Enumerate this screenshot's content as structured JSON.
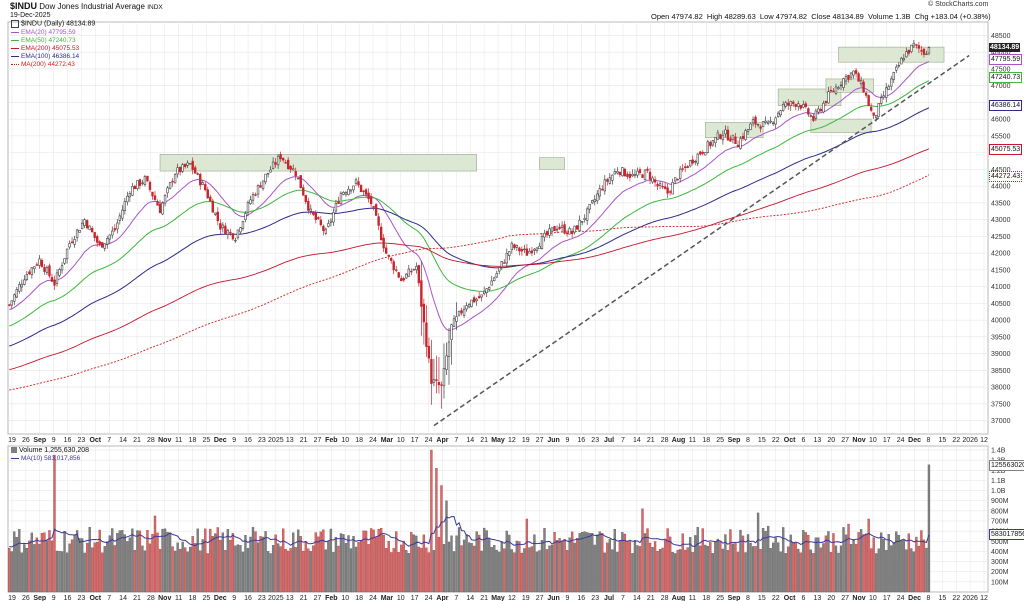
{
  "header": {
    "symbol": "$INDU",
    "name": "Dow Jones Industrial Average",
    "exchange": "INDX",
    "date": "19-Dec-2025",
    "open_label": "Open",
    "open": "47974.82",
    "high_label": "High",
    "high": "48289.63",
    "low_label": "Low",
    "low": "47974.82",
    "close_label": "Close",
    "close": "48134.89",
    "volume_label": "Volume",
    "volume": "1.3B",
    "chg_label": "Chg",
    "chg": "+183.04 (+0.38%)",
    "brand": "© StockCharts.com"
  },
  "legend": {
    "price": "$INDU (Daily) 48134.89",
    "ema20": "EMA(20) 47795.59",
    "ema50": "EMA(50) 47240.73",
    "ema200": "EMA(200) 45075.53",
    "ema100": "EMA(100) 46386.14",
    "ma200": "MA(200) 44272.43",
    "volume": "Volume 1,255,630,208",
    "vol_ma": "MA(10) 583,017,856"
  },
  "colors": {
    "up": "#404040",
    "down": "#c8242c",
    "vol_up": "#808080",
    "vol_down": "#d46a6a",
    "ema20": "#a855c8",
    "ema50": "#3cb83c",
    "ema100": "#2b2b8c",
    "ema200": "#c8142c",
    "ma200": "#d02020",
    "zone_fill": "#dce8d4",
    "zone_stroke": "#9aaa8a",
    "trend": "#555555",
    "vol_ma": "#3a3a9c",
    "grid": "#e4e4e4"
  },
  "value_tags": {
    "close": "48134.89",
    "ema20": "47795.59",
    "ema50": "47240.73",
    "ema100": "46386.14",
    "ema200": "45075.53",
    "ma200": "44272.43",
    "volume": "1255630208",
    "vol_ma": "583017856"
  },
  "chart_data": {
    "type": "candlestick",
    "x_ticks": [
      "19",
      "26",
      "Sep",
      "9",
      "16",
      "23",
      "Oct",
      "7",
      "14",
      "21",
      "28",
      "Nov",
      "11",
      "18",
      "25",
      "Dec",
      "9",
      "16",
      "23",
      "2025",
      "13",
      "21",
      "27",
      "Feb",
      "10",
      "18",
      "24",
      "Mar",
      "10",
      "17",
      "24",
      "Apr",
      "7",
      "14",
      "21",
      "May",
      "12",
      "19",
      "27",
      "Jun",
      "9",
      "16",
      "23",
      "Jul",
      "7",
      "14",
      "21",
      "28",
      "Aug",
      "11",
      "18",
      "25",
      "Sep",
      "8",
      "15",
      "22",
      "Oct",
      "6",
      "13",
      "20",
      "27",
      "Nov",
      "10",
      "17",
      "24",
      "Dec",
      "8",
      "15",
      "22",
      "2026",
      "12"
    ],
    "y_ticks": [
      37000,
      37500,
      38000,
      38500,
      39000,
      39500,
      40000,
      40500,
      41000,
      41500,
      42000,
      42500,
      43000,
      43500,
      44000,
      44500,
      45000,
      45500,
      46000,
      46500,
      47000,
      47500,
      48000,
      48500
    ],
    "ylim": [
      36600,
      48900
    ],
    "price_anchors": [
      [
        0,
        40450
      ],
      [
        6,
        41300
      ],
      [
        12,
        41800
      ],
      [
        18,
        41100
      ],
      [
        24,
        42300
      ],
      [
        30,
        43000
      ],
      [
        36,
        42200
      ],
      [
        42,
        42700
      ],
      [
        48,
        43900
      ],
      [
        54,
        44200
      ],
      [
        60,
        43300
      ],
      [
        66,
        44400
      ],
      [
        72,
        44650
      ],
      [
        78,
        43900
      ],
      [
        84,
        42800
      ],
      [
        90,
        42500
      ],
      [
        96,
        43600
      ],
      [
        102,
        44300
      ],
      [
        108,
        44900
      ],
      [
        114,
        44400
      ],
      [
        120,
        43200
      ],
      [
        126,
        42600
      ],
      [
        132,
        43800
      ],
      [
        138,
        44100
      ],
      [
        144,
        43500
      ],
      [
        150,
        42000
      ],
      [
        156,
        41200
      ],
      [
        162,
        41600
      ],
      [
        168,
        38200
      ],
      [
        172,
        38000
      ],
      [
        176,
        39800
      ],
      [
        182,
        40500
      ],
      [
        188,
        40700
      ],
      [
        194,
        41400
      ],
      [
        200,
        42200
      ],
      [
        206,
        42000
      ],
      [
        212,
        42400
      ],
      [
        218,
        42800
      ],
      [
        224,
        42600
      ],
      [
        230,
        43200
      ],
      [
        236,
        44000
      ],
      [
        242,
        44500
      ],
      [
        248,
        44300
      ],
      [
        254,
        44400
      ],
      [
        258,
        44000
      ],
      [
        262,
        43800
      ],
      [
        266,
        44300
      ],
      [
        272,
        44800
      ],
      [
        278,
        45200
      ],
      [
        284,
        45600
      ],
      [
        290,
        45300
      ],
      [
        296,
        45900
      ],
      [
        302,
        45800
      ],
      [
        308,
        46400
      ],
      [
        314,
        46500
      ],
      [
        320,
        46000
      ],
      [
        326,
        46700
      ],
      [
        332,
        47200
      ],
      [
        336,
        47400
      ],
      [
        340,
        46900
      ],
      [
        344,
        46000
      ],
      [
        348,
        46700
      ],
      [
        352,
        47300
      ],
      [
        356,
        47900
      ],
      [
        360,
        48200
      ],
      [
        364,
        48000
      ],
      [
        366,
        48134.89
      ]
    ],
    "zones": [
      {
        "x0": 60,
        "x1": 186,
        "y0": 44450,
        "y1": 44950
      },
      {
        "x0": 211,
        "x1": 221,
        "y0": 44500,
        "y1": 44850
      },
      {
        "x0": 277,
        "x1": 300,
        "y0": 45450,
        "y1": 45900
      },
      {
        "x0": 306,
        "x1": 331,
        "y0": 46400,
        "y1": 46900
      },
      {
        "x0": 319,
        "x1": 343,
        "y0": 45600,
        "y1": 46000
      },
      {
        "x0": 325,
        "x1": 344,
        "y0": 46800,
        "y1": 47200
      },
      {
        "x0": 330,
        "x1": 372,
        "y0": 47700,
        "y1": 48150
      }
    ],
    "trendline": {
      "x0": 169,
      "y0": 36850,
      "x1": 382,
      "y1": 47900
    },
    "ema_end": {
      "ema20": 47795.59,
      "ema50": 47240.73,
      "ema100": 46386.14,
      "ema200": 45075.53,
      "ma200": 44272.43
    },
    "volume": {
      "y_ticks_labels": [
        "100M",
        "200M",
        "300M",
        "400M",
        "500M",
        "600M",
        "700M",
        "800M",
        "900M",
        "1.0B",
        "1.1B",
        "1.2B",
        "1.3B",
        "1.4B"
      ],
      "y_ticks_values": [
        100,
        200,
        300,
        400,
        500,
        600,
        700,
        800,
        900,
        1000,
        1100,
        1200,
        1300,
        1400
      ],
      "ylim": [
        0,
        1400
      ],
      "unit": "M",
      "spikes": [
        [
          18,
          1350
        ],
        [
          58,
          750
        ],
        [
          168,
          1400
        ],
        [
          170,
          1220
        ],
        [
          172,
          1050
        ],
        [
          174,
          900
        ],
        [
          206,
          720
        ],
        [
          252,
          820
        ],
        [
          298,
          780
        ],
        [
          302,
          650
        ],
        [
          318,
          560
        ],
        [
          334,
          670
        ],
        [
          342,
          720
        ],
        [
          366,
          1255
        ]
      ]
    }
  }
}
